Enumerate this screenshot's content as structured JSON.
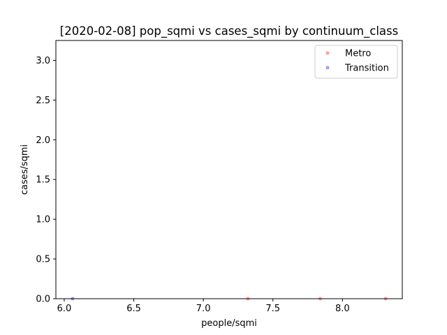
{
  "chart_data": {
    "type": "scatter",
    "title": "[2020-02-08] pop_sqmi vs cases_sqmi by continuum_class",
    "xlabel": "people/sqmi",
    "ylabel": "cases/sqmi",
    "xlim": [
      5.94,
      8.43
    ],
    "ylim": [
      0,
      3.25
    ],
    "xticks": [
      6.0,
      6.5,
      7.0,
      7.5,
      8.0
    ],
    "xtick_labels": [
      "6.0",
      "6.5",
      "7.0",
      "7.5",
      "8.0"
    ],
    "yticks": [
      0.0,
      0.5,
      1.0,
      1.5,
      2.0,
      2.5,
      3.0
    ],
    "ytick_labels": [
      "0.0",
      "0.5",
      "1.0",
      "1.5",
      "2.0",
      "2.5",
      "3.0"
    ],
    "grid": false,
    "legend_position": "top-right",
    "series": [
      {
        "name": "Metro",
        "color": "#ff0000",
        "points": [
          {
            "x": 7.32,
            "y": 0
          },
          {
            "x": 7.84,
            "y": 0
          },
          {
            "x": 8.31,
            "y": 0
          }
        ]
      },
      {
        "name": "Transition",
        "color": "#0000ff",
        "points": [
          {
            "x": 6.06,
            "y": 0
          }
        ]
      }
    ]
  }
}
